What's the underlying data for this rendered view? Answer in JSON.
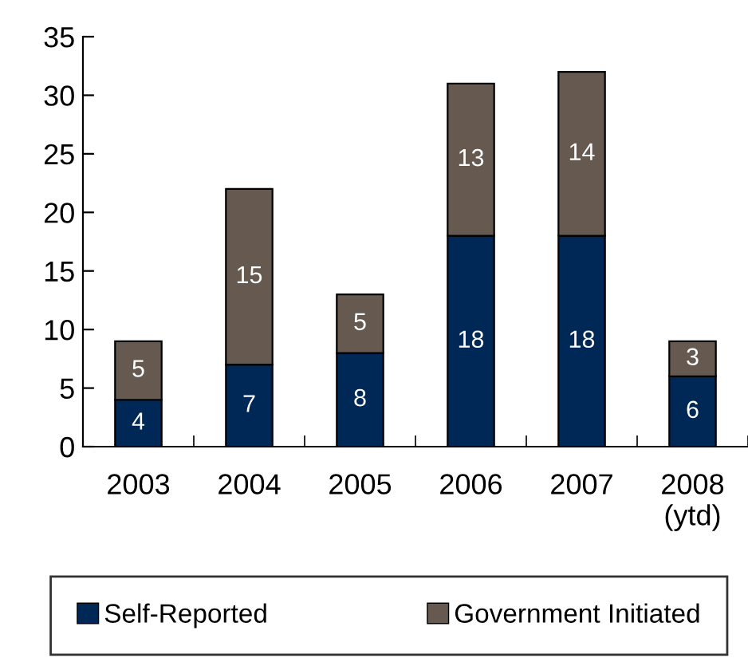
{
  "chart_data": {
    "type": "bar",
    "stacked": true,
    "categories": [
      "2003",
      "2004",
      "2005",
      "2006",
      "2007",
      "2008\n(ytd)"
    ],
    "series": [
      {
        "name": "Self-Reported",
        "color": "#002856",
        "values": [
          4,
          7,
          8,
          18,
          18,
          6
        ]
      },
      {
        "name": "Government Initiated",
        "color": "#665a50",
        "values": [
          5,
          15,
          5,
          13,
          14,
          3
        ]
      }
    ],
    "ylim": [
      0,
      35
    ],
    "yticks": [
      0,
      5,
      10,
      15,
      20,
      25,
      30,
      35
    ],
    "grid": false,
    "legend": "bottom",
    "data_labels": true
  }
}
